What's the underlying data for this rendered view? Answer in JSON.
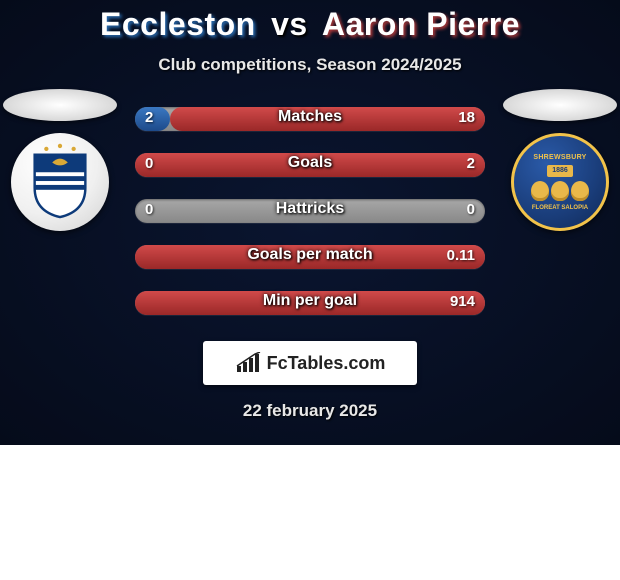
{
  "title": {
    "player1": "Eccleston",
    "vs": "vs",
    "player2": "Aaron Pierre"
  },
  "subtitle": "Club competitions, Season 2024/2025",
  "colors": {
    "left": "#1d4a8a",
    "right": "#9a2828",
    "neutral": "#888888",
    "card_bg_center": "#0a1530",
    "card_bg_edge": "#050b1a"
  },
  "clubs": {
    "left": {
      "name": "huddersfield-badge",
      "bg": "#ffffff"
    },
    "right": {
      "name": "shrewsbury-badge",
      "bg": "#1a3d7a",
      "ring": "#f2c34a"
    }
  },
  "stats": [
    {
      "label": "Matches",
      "left_val": "2",
      "right_val": "18",
      "left_pct": 10,
      "right_pct": 90
    },
    {
      "label": "Goals",
      "left_val": "0",
      "right_val": "2",
      "left_pct": 0,
      "right_pct": 100
    },
    {
      "label": "Hattricks",
      "left_val": "0",
      "right_val": "0",
      "left_pct": 0,
      "right_pct": 0
    },
    {
      "label": "Goals per match",
      "left_val": "",
      "right_val": "0.11",
      "left_pct": 0,
      "right_pct": 100
    },
    {
      "label": "Min per goal",
      "left_val": "",
      "right_val": "914",
      "left_pct": 0,
      "right_pct": 100
    }
  ],
  "brand": "FcTables.com",
  "date": "22 february 2025"
}
